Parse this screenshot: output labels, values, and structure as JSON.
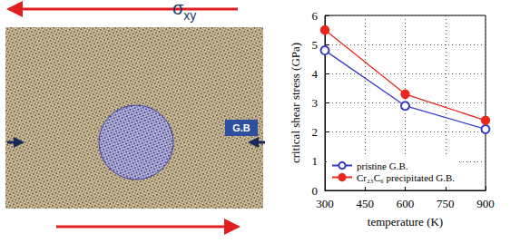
{
  "panel": {
    "stress_label": {
      "symbol": "σ",
      "subscript": "xy"
    },
    "boundary_label": "G.B"
  },
  "chart_data": {
    "type": "line",
    "x": [
      300,
      600,
      900
    ],
    "series": [
      {
        "name": "pristine G.B.",
        "color": "#3a3ac8",
        "marker": "open circle",
        "line_style": "solid",
        "values": [
          4.8,
          2.9,
          2.1
        ]
      },
      {
        "name": "Cr₂₃C₆ precipitated G.B.",
        "color": "#e8281e",
        "marker": "circle",
        "line_style": "solid",
        "values": [
          5.5,
          3.3,
          2.4
        ]
      }
    ],
    "xlabel": "temperature (K)",
    "ylabel": "critical shear stress (GPa)",
    "xlim": [
      300,
      900
    ],
    "xticks": [
      300,
      450,
      600,
      750,
      900
    ],
    "ylim": [
      0,
      6
    ],
    "yticks": [
      0,
      1,
      2,
      3,
      4,
      5,
      6
    ],
    "grid": true,
    "legend": "lower left"
  }
}
